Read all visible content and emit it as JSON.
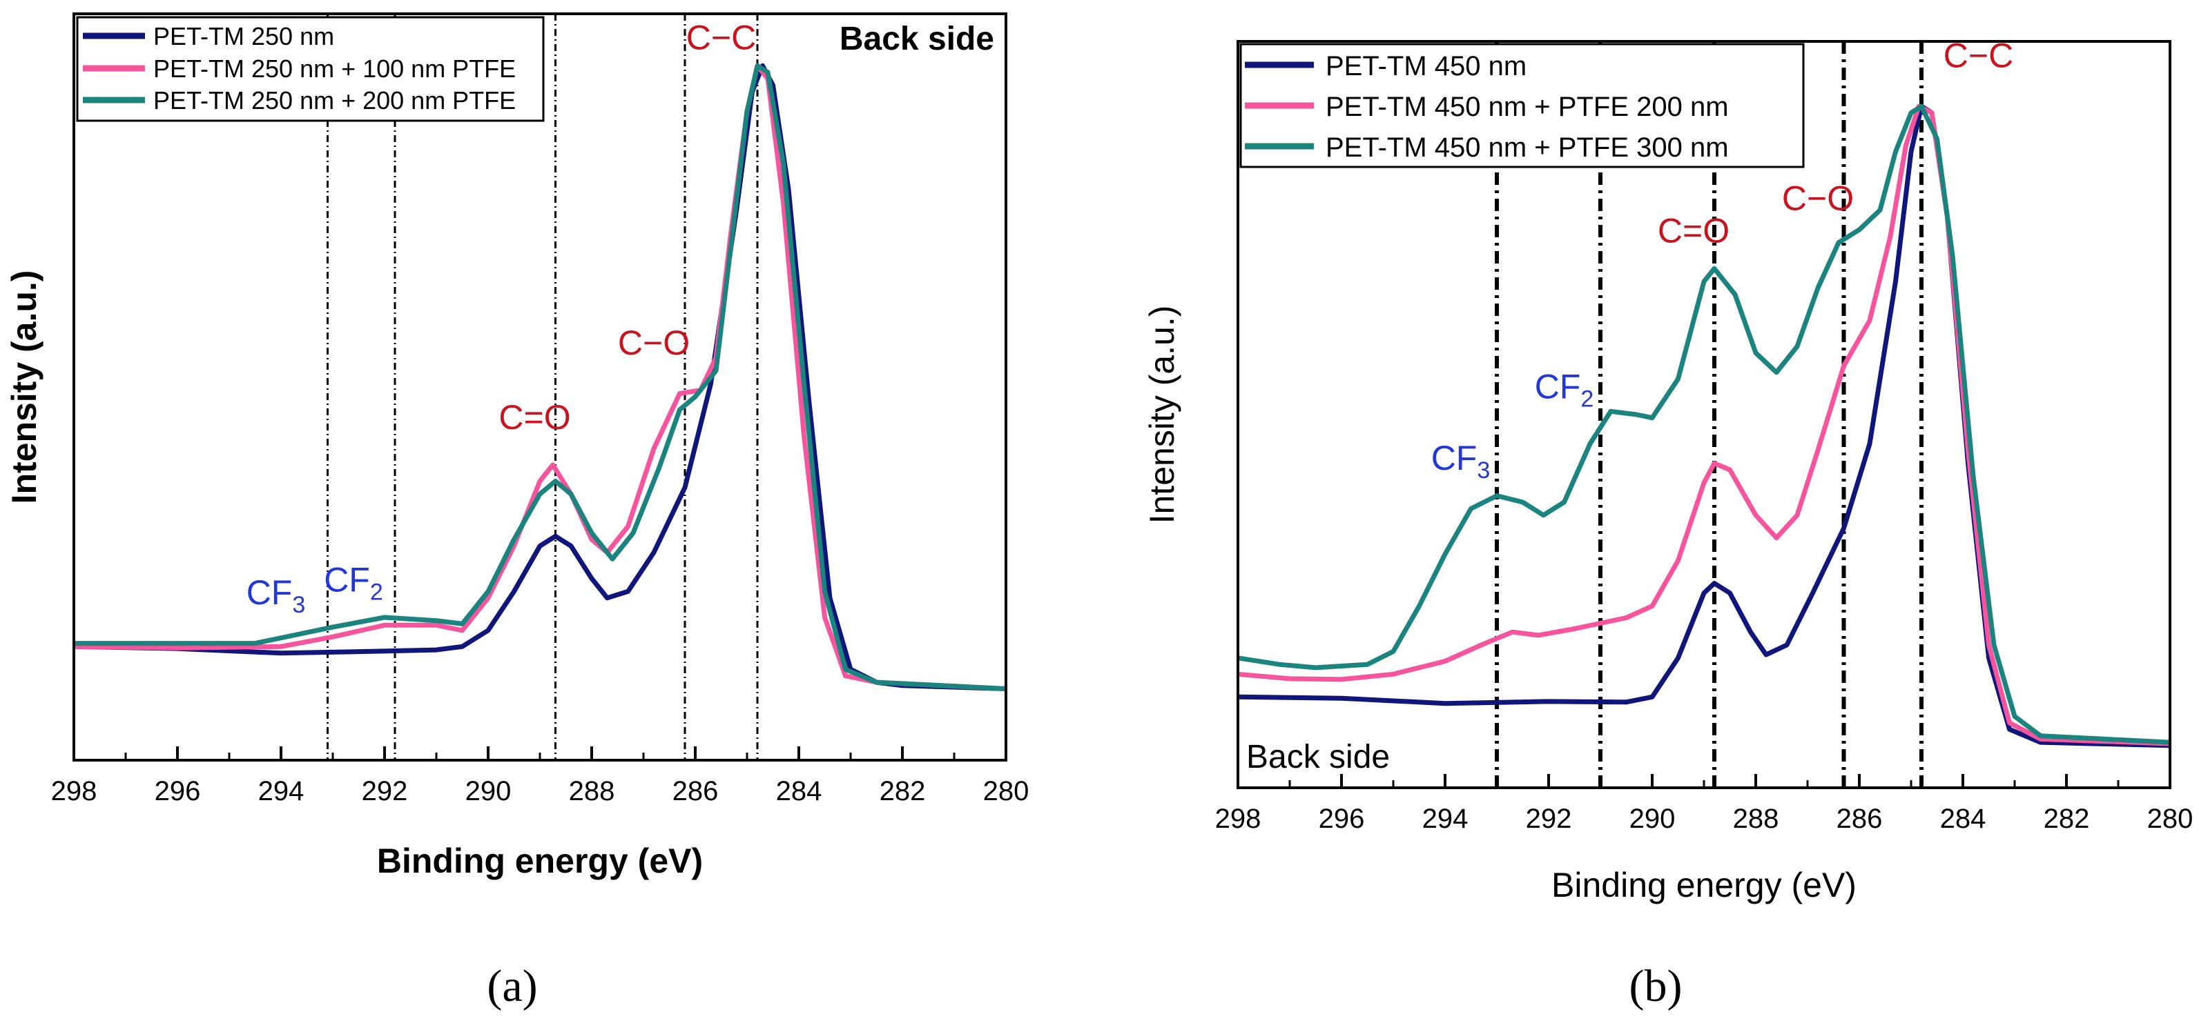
{
  "panel_labels": [
    "(a)",
    "(b)"
  ],
  "chart_data": [
    {
      "type": "line",
      "panel": "(a)",
      "title": "",
      "xlabel": "Binding energy (eV)",
      "ylabel": "Intensity (a.u.)",
      "xlim": [
        298,
        280
      ],
      "ylim": [
        0,
        1.15
      ],
      "x_ticks": [
        298,
        296,
        294,
        292,
        290,
        288,
        286,
        284,
        282,
        280
      ],
      "y_ticks_shown": false,
      "grid": false,
      "legend_position": "top-left",
      "corner_text": "Back side",
      "series": [
        {
          "name": "PET-TM 250 nm",
          "color": "#10167a",
          "points": [
            [
              298,
              0.175
            ],
            [
              296,
              0.172
            ],
            [
              294,
              0.165
            ],
            [
              292,
              0.168
            ],
            [
              291,
              0.17
            ],
            [
              290.5,
              0.175
            ],
            [
              290,
              0.2
            ],
            [
              289.5,
              0.26
            ],
            [
              289,
              0.33
            ],
            [
              288.7,
              0.345
            ],
            [
              288.4,
              0.33
            ],
            [
              288,
              0.28
            ],
            [
              287.7,
              0.25
            ],
            [
              287.3,
              0.26
            ],
            [
              286.8,
              0.32
            ],
            [
              286.2,
              0.42
            ],
            [
              285.7,
              0.58
            ],
            [
              285.2,
              0.85
            ],
            [
              284.9,
              1.03
            ],
            [
              284.7,
              1.07
            ],
            [
              284.5,
              1.04
            ],
            [
              284.2,
              0.88
            ],
            [
              283.8,
              0.55
            ],
            [
              283.4,
              0.25
            ],
            [
              283,
              0.14
            ],
            [
              282.5,
              0.12
            ],
            [
              282,
              0.115
            ],
            [
              280,
              0.11
            ]
          ]
        },
        {
          "name": "PET-TM 250 nm + 100 nm PTFE",
          "color": "#f6559d",
          "points": [
            [
              298,
              0.175
            ],
            [
              296,
              0.173
            ],
            [
              294,
              0.175
            ],
            [
              293,
              0.19
            ],
            [
              292,
              0.208
            ],
            [
              291,
              0.208
            ],
            [
              290.5,
              0.2
            ],
            [
              290,
              0.25
            ],
            [
              289.5,
              0.33
            ],
            [
              289,
              0.43
            ],
            [
              288.75,
              0.455
            ],
            [
              288.4,
              0.41
            ],
            [
              288,
              0.34
            ],
            [
              287.7,
              0.32
            ],
            [
              287.3,
              0.36
            ],
            [
              286.8,
              0.48
            ],
            [
              286.3,
              0.565
            ],
            [
              285.9,
              0.57
            ],
            [
              285.6,
              0.62
            ],
            [
              285.3,
              0.82
            ],
            [
              285,
              1.0
            ],
            [
              284.8,
              1.07
            ],
            [
              284.6,
              1.05
            ],
            [
              284.3,
              0.86
            ],
            [
              283.9,
              0.5
            ],
            [
              283.5,
              0.22
            ],
            [
              283.1,
              0.13
            ],
            [
              282.5,
              0.12
            ],
            [
              280,
              0.11
            ]
          ]
        },
        {
          "name": "PET-TM 250 nm + 200 nm PTFE",
          "color": "#1b847e",
          "points": [
            [
              298,
              0.18
            ],
            [
              296,
              0.18
            ],
            [
              294.5,
              0.18
            ],
            [
              293,
              0.205
            ],
            [
              292,
              0.22
            ],
            [
              291,
              0.215
            ],
            [
              290.5,
              0.21
            ],
            [
              290,
              0.26
            ],
            [
              289.5,
              0.34
            ],
            [
              289,
              0.41
            ],
            [
              288.7,
              0.43
            ],
            [
              288.4,
              0.41
            ],
            [
              288,
              0.35
            ],
            [
              287.6,
              0.31
            ],
            [
              287.2,
              0.35
            ],
            [
              286.7,
              0.45
            ],
            [
              286.3,
              0.54
            ],
            [
              286,
              0.56
            ],
            [
              285.6,
              0.6
            ],
            [
              285.3,
              0.8
            ],
            [
              285,
              1.0
            ],
            [
              284.8,
              1.07
            ],
            [
              284.6,
              1.06
            ],
            [
              284.3,
              0.92
            ],
            [
              283.9,
              0.58
            ],
            [
              283.5,
              0.26
            ],
            [
              283.1,
              0.14
            ],
            [
              282.5,
              0.12
            ],
            [
              280,
              0.11
            ]
          ]
        }
      ],
      "reference_lines": [
        293.1,
        291.8,
        288.7,
        286.2,
        284.8
      ],
      "annotations": [
        {
          "text": "C−C",
          "x": 285.5,
          "y": 1.095,
          "color": "#c8141e"
        },
        {
          "text": "C−O",
          "x": 286.8,
          "y": 0.625,
          "color": "#c8141e"
        },
        {
          "text": "C=O",
          "x": 289.1,
          "y": 0.51,
          "color": "#c8141e"
        },
        {
          "base": "CF",
          "sub": "3",
          "x": 294.1,
          "y": 0.24,
          "color": "#2336d8"
        },
        {
          "base": "CF",
          "sub": "2",
          "x": 292.6,
          "y": 0.26,
          "color": "#2336d8"
        }
      ]
    },
    {
      "type": "line",
      "panel": "(b)",
      "title": "",
      "xlabel": "Binding energy (eV)",
      "ylabel": "Intensity (a.u.)",
      "xlim": [
        298,
        280
      ],
      "ylim": [
        0,
        1.15
      ],
      "x_ticks": [
        298,
        296,
        294,
        292,
        290,
        288,
        286,
        284,
        282,
        280
      ],
      "y_ticks_shown": false,
      "grid": false,
      "legend_position": "top-left",
      "corner_text": "Back side",
      "series": [
        {
          "name": "PET-TM 450 nm",
          "color": "#10167a",
          "points": [
            [
              298,
              0.14
            ],
            [
              296,
              0.138
            ],
            [
              294,
              0.13
            ],
            [
              292,
              0.133
            ],
            [
              290.5,
              0.132
            ],
            [
              290,
              0.14
            ],
            [
              289.5,
              0.2
            ],
            [
              289,
              0.3
            ],
            [
              288.8,
              0.315
            ],
            [
              288.5,
              0.3
            ],
            [
              288.1,
              0.24
            ],
            [
              287.8,
              0.205
            ],
            [
              287.4,
              0.22
            ],
            [
              286.9,
              0.3
            ],
            [
              286.3,
              0.4
            ],
            [
              285.8,
              0.53
            ],
            [
              285.3,
              0.78
            ],
            [
              285,
              0.98
            ],
            [
              284.8,
              1.05
            ],
            [
              284.6,
              1.04
            ],
            [
              284.3,
              0.88
            ],
            [
              283.9,
              0.5
            ],
            [
              283.5,
              0.2
            ],
            [
              283.1,
              0.09
            ],
            [
              282.5,
              0.07
            ],
            [
              280,
              0.065
            ]
          ]
        },
        {
          "name": "PET-TM 450 nm + PTFE 200 nm",
          "color": "#f6559d",
          "points": [
            [
              298,
              0.175
            ],
            [
              297,
              0.168
            ],
            [
              296,
              0.167
            ],
            [
              295,
              0.175
            ],
            [
              294,
              0.195
            ],
            [
              293.3,
              0.22
            ],
            [
              292.7,
              0.24
            ],
            [
              292.2,
              0.235
            ],
            [
              291.5,
              0.245
            ],
            [
              290.5,
              0.262
            ],
            [
              290,
              0.28
            ],
            [
              289.5,
              0.35
            ],
            [
              289,
              0.47
            ],
            [
              288.8,
              0.5
            ],
            [
              288.5,
              0.49
            ],
            [
              288,
              0.42
            ],
            [
              287.6,
              0.385
            ],
            [
              287.2,
              0.42
            ],
            [
              286.8,
              0.52
            ],
            [
              286.3,
              0.65
            ],
            [
              285.8,
              0.72
            ],
            [
              285.4,
              0.85
            ],
            [
              285.1,
              0.99
            ],
            [
              284.85,
              1.05
            ],
            [
              284.6,
              1.04
            ],
            [
              284.3,
              0.88
            ],
            [
              283.9,
              0.52
            ],
            [
              283.5,
              0.22
            ],
            [
              283.1,
              0.1
            ],
            [
              282.5,
              0.075
            ],
            [
              280,
              0.068
            ]
          ]
        },
        {
          "name": "PET-TM 450 nm + PTFE 300 nm",
          "color": "#1b847e",
          "points": [
            [
              298,
              0.2
            ],
            [
              297.2,
              0.19
            ],
            [
              296.5,
              0.185
            ],
            [
              295.5,
              0.19
            ],
            [
              295,
              0.21
            ],
            [
              294.5,
              0.28
            ],
            [
              294,
              0.36
            ],
            [
              293.5,
              0.43
            ],
            [
              293,
              0.45
            ],
            [
              292.5,
              0.44
            ],
            [
              292.1,
              0.42
            ],
            [
              291.7,
              0.44
            ],
            [
              291.2,
              0.53
            ],
            [
              290.8,
              0.58
            ],
            [
              290.3,
              0.575
            ],
            [
              290,
              0.57
            ],
            [
              289.5,
              0.63
            ],
            [
              289,
              0.78
            ],
            [
              288.8,
              0.8
            ],
            [
              288.4,
              0.76
            ],
            [
              288,
              0.67
            ],
            [
              287.6,
              0.64
            ],
            [
              287.2,
              0.68
            ],
            [
              286.8,
              0.77
            ],
            [
              286.4,
              0.84
            ],
            [
              286,
              0.86
            ],
            [
              285.6,
              0.89
            ],
            [
              285.3,
              0.98
            ],
            [
              285,
              1.04
            ],
            [
              284.8,
              1.05
            ],
            [
              284.5,
              1.0
            ],
            [
              284.2,
              0.82
            ],
            [
              283.8,
              0.48
            ],
            [
              283.4,
              0.22
            ],
            [
              283,
              0.11
            ],
            [
              282.5,
              0.08
            ],
            [
              280,
              0.07
            ]
          ]
        }
      ],
      "reference_lines": [
        293.0,
        291.0,
        288.8,
        286.3,
        284.8
      ],
      "annotations": [
        {
          "text": "C−C",
          "x": 283.7,
          "y": 1.11,
          "color": "#c8141e"
        },
        {
          "text": "C−O",
          "x": 286.8,
          "y": 0.89,
          "color": "#c8141e"
        },
        {
          "text": "C=O",
          "x": 289.2,
          "y": 0.84,
          "color": "#c8141e"
        },
        {
          "base": "CF",
          "sub": "3",
          "x": 293.7,
          "y": 0.49,
          "color": "#2336d8"
        },
        {
          "base": "CF",
          "sub": "2",
          "x": 291.7,
          "y": 0.6,
          "color": "#2336d8"
        }
      ]
    }
  ]
}
